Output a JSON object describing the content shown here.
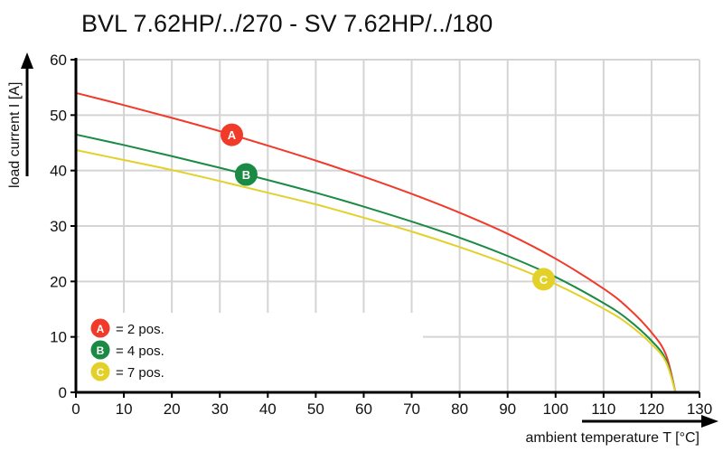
{
  "chart_data": {
    "type": "line",
    "title": "BVL 7.62HP/../270 - SV 7.62HP/../180",
    "xlabel": "ambient temperature T [°C]",
    "ylabel": "load current I [A]",
    "xlim": [
      0,
      130
    ],
    "ylim": [
      0,
      60
    ],
    "xticks": [
      0,
      10,
      20,
      30,
      40,
      50,
      60,
      70,
      80,
      90,
      100,
      110,
      120,
      130
    ],
    "yticks": [
      0,
      10,
      20,
      30,
      40,
      50,
      60
    ],
    "grid": true,
    "legend_position": "bottom-left",
    "x": [
      0,
      10,
      20,
      30,
      40,
      50,
      60,
      70,
      80,
      90,
      100,
      110,
      115,
      120,
      123,
      125
    ],
    "series": [
      {
        "id": "A",
        "name": "= 2 pos.",
        "color": "#f03a2a",
        "marker_x": 32.5,
        "values": [
          54.0,
          51.8,
          49.5,
          47.1,
          44.5,
          41.8,
          38.9,
          35.8,
          32.4,
          28.6,
          24.1,
          18.7,
          15.3,
          10.8,
          6.8,
          0
        ]
      },
      {
        "id": "B",
        "name": "= 4 pos.",
        "color": "#1a8a45",
        "marker_x": 35.5,
        "values": [
          46.5,
          44.6,
          42.6,
          40.5,
          38.3,
          36.0,
          33.5,
          30.8,
          27.9,
          24.6,
          20.8,
          16.1,
          13.2,
          9.3,
          5.9,
          0
        ]
      },
      {
        "id": "C",
        "name": "= 7 pos.",
        "color": "#e3d12a",
        "marker_x": 97.5,
        "values": [
          43.7,
          41.9,
          40.1,
          38.1,
          36.0,
          33.9,
          31.5,
          29.0,
          26.2,
          23.1,
          19.5,
          15.1,
          12.4,
          8.7,
          5.5,
          0
        ]
      }
    ]
  }
}
